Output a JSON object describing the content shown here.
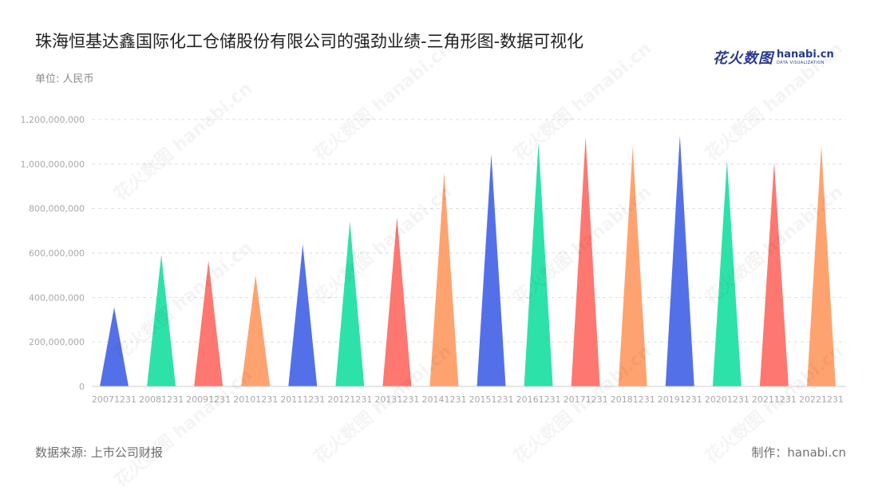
{
  "header": {
    "title": "珠海恒基达鑫国际化工仓储股份有限公司的强劲业绩-三角形图-数据可视化",
    "unit": "单位: 人民币"
  },
  "logo": {
    "cn": "花火数图",
    "en": "hanabi.cn",
    "en_sub": "DATA VISUALIZATION"
  },
  "footer": {
    "source": "数据来源: 上市公司财报",
    "maker": "制作：hanabi.cn"
  },
  "watermark": {
    "text": "花火数图 hanabi.cn"
  },
  "chart_data": {
    "type": "bar",
    "subtype": "triangle",
    "title": "珠海恒基达鑫国际化工仓储股份有限公司的强劲业绩-三角形图-数据可视化",
    "xlabel": "",
    "ylabel": "",
    "ylim": [
      0,
      1200000000
    ],
    "yticks": [
      0,
      200000000,
      400000000,
      600000000,
      800000000,
      1000000000,
      1200000000
    ],
    "grid": true,
    "legend": "none",
    "categories": [
      "20071231",
      "20081231",
      "20091231",
      "20101231",
      "20111231",
      "20121231",
      "20131231",
      "20141231",
      "20151231",
      "20161231",
      "20171231",
      "20181231",
      "20191231",
      "20201231",
      "20211231",
      "20221231"
    ],
    "values": [
      355000000,
      592000000,
      565000000,
      500000000,
      638000000,
      742000000,
      762000000,
      963000000,
      1045000000,
      1098000000,
      1122000000,
      1078000000,
      1128000000,
      1015000000,
      1008000000,
      1082000000
    ],
    "colors": [
      "#5470e8",
      "#2de2a9",
      "#fe7771",
      "#fea370"
    ]
  }
}
